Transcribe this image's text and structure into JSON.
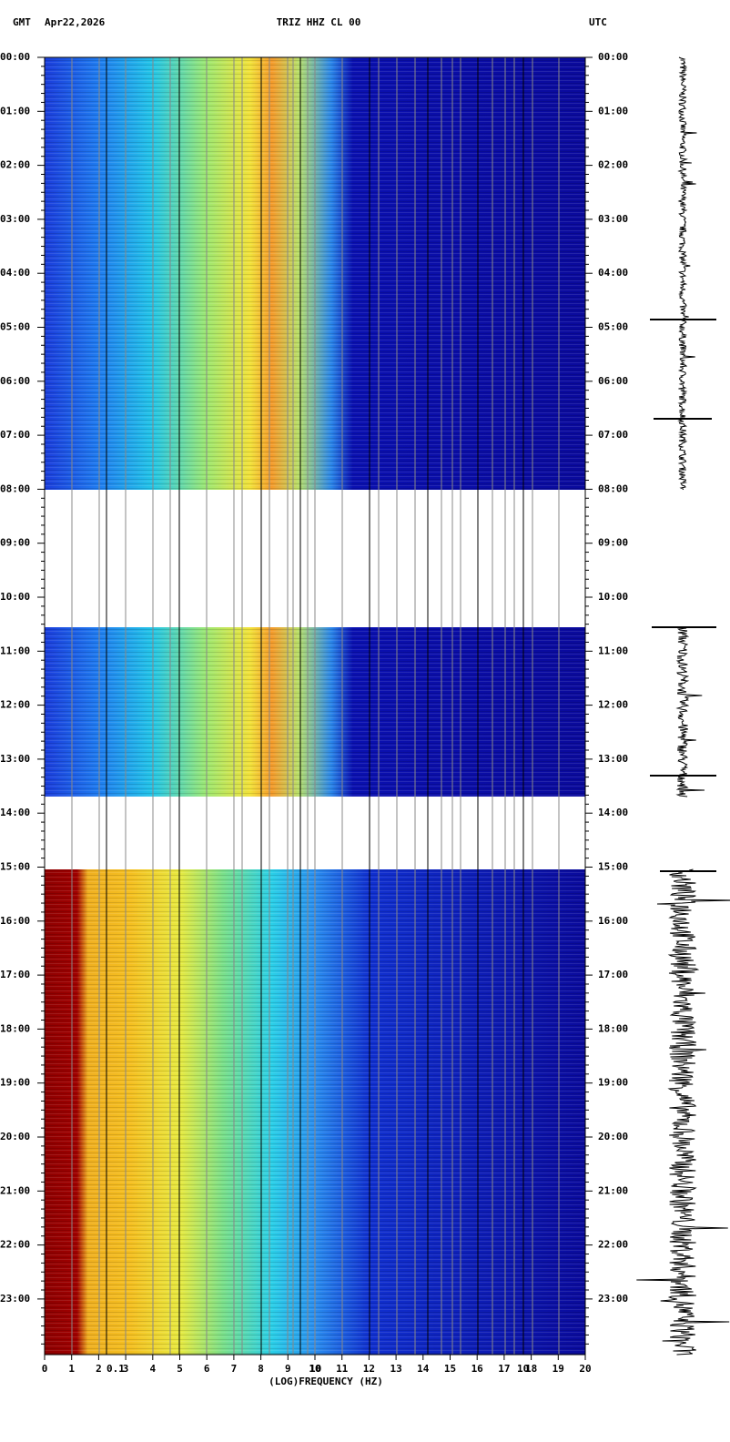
{
  "header": {
    "left": "GMT",
    "date": "Apr22,2026",
    "station": "TRIZ HHZ CL 00",
    "right": "UTC"
  },
  "time_labels": [
    "00:00",
    "01:00",
    "02:00",
    "03:00",
    "04:00",
    "05:00",
    "06:00",
    "07:00",
    "08:00",
    "09:00",
    "10:00",
    "11:00",
    "12:00",
    "13:00",
    "14:00",
    "15:00",
    "16:00",
    "17:00",
    "18:00",
    "19:00",
    "20:00",
    "21:00",
    "22:00",
    "23:00"
  ],
  "freq_labels": [
    "0",
    "1",
    "2",
    "3",
    "4",
    "5",
    "6",
    "7",
    "8",
    "9",
    "10",
    "11",
    "12",
    "13",
    "14",
    "15",
    "16",
    "17",
    "18",
    "19",
    "20"
  ],
  "log_labels": [
    "0.1",
    "10"
  ],
  "axis_label": "(LOG)FREQUENCY (HZ)"
}
